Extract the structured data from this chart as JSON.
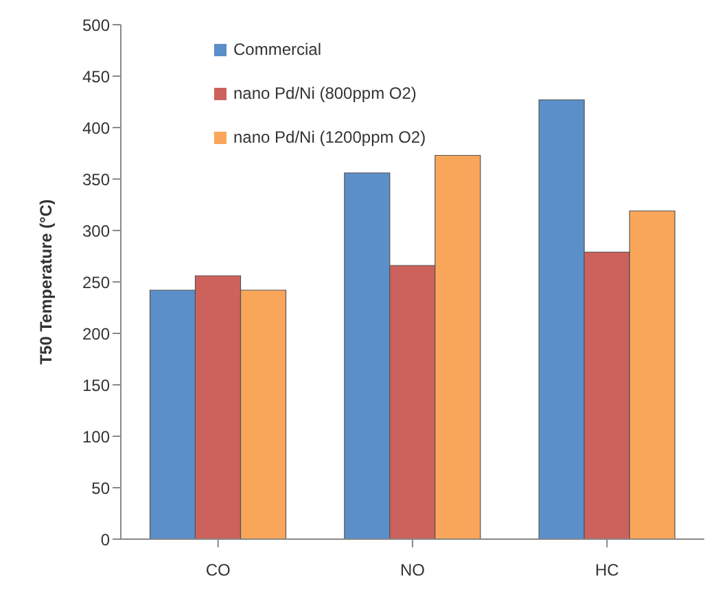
{
  "chart_data": {
    "type": "bar",
    "ylabel": "T50 Temperature (°C)",
    "categories": [
      "CO",
      "NO",
      "HC"
    ],
    "series": [
      {
        "name": "Commercial",
        "color": "#5b8fc9",
        "values": [
          242,
          356,
          427
        ]
      },
      {
        "name": "nano Pd/Ni (800ppm O2)",
        "color": "#cd625c",
        "values": [
          256,
          266,
          279
        ]
      },
      {
        "name": "nano Pd/Ni (1200ppm O2)",
        "color": "#f9a65a",
        "values": [
          242,
          373,
          319
        ]
      }
    ],
    "ylim": [
      0,
      500
    ],
    "yticks": [
      0,
      50,
      100,
      150,
      200,
      250,
      300,
      350,
      400,
      450,
      500
    ],
    "grid": false,
    "legend": "top left"
  }
}
